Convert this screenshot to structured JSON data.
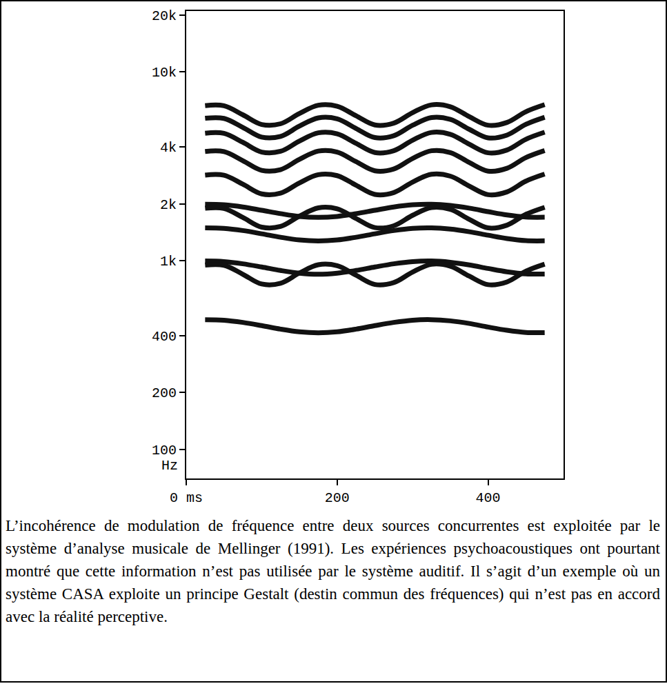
{
  "chart_data": {
    "type": "line",
    "ylabel": "Hz",
    "log": "y",
    "grid": false,
    "xlim": [
      0,
      500
    ],
    "ylim": [
      70,
      21000
    ],
    "xticks": [
      {
        "value": 0,
        "label": "0 ms"
      },
      200,
      400
    ],
    "yticks": [
      100,
      200,
      400,
      {
        "value": 1000,
        "label": "1k"
      },
      {
        "value": 2000,
        "label": "2k"
      },
      {
        "value": 4000,
        "label": "4k"
      },
      {
        "value": 10000,
        "label": "10k"
      },
      {
        "value": 20000,
        "label": "20k"
      }
    ],
    "x": [
      25,
      50,
      75,
      100,
      125,
      150,
      175,
      200,
      225,
      250,
      275,
      300,
      325,
      350,
      375,
      400,
      425,
      450,
      475
    ],
    "series": [
      {
        "color": "#111111",
        "values": [
          486,
          483,
          470,
          452,
          433,
          419,
          414,
          419,
          433,
          452,
          470,
          483,
          486,
          479,
          464,
          444,
          427,
          416,
          415
        ]
      },
      {
        "color": "#111111",
        "values": [
          994,
          987,
          961,
          924,
          886,
          857,
          846,
          857,
          886,
          924,
          961,
          987,
          994,
          979,
          948,
          908,
          872,
          850,
          848
        ]
      },
      {
        "color": "#111111",
        "values": [
          1490,
          1481,
          1442,
          1386,
          1329,
          1285,
          1270,
          1285,
          1329,
          1386,
          1442,
          1481,
          1490,
          1468,
          1421,
          1362,
          1308,
          1275,
          1272
        ]
      },
      {
        "color": "#111111",
        "values": [
          1987,
          1974,
          1923,
          1847,
          1772,
          1713,
          1693,
          1713,
          1772,
          1847,
          1923,
          1974,
          1987,
          1958,
          1895,
          1816,
          1744,
          1700,
          1696
        ]
      },
      {
        "color": "#111111",
        "values": [
          946,
          944,
          846,
          751,
          758,
          859,
          950,
          939,
          836,
          747,
          764,
          869,
          955,
          933,
          827,
          745,
          770,
          878,
          957
        ]
      },
      {
        "color": "#111111",
        "values": [
          1892,
          1889,
          1692,
          1503,
          1516,
          1719,
          1901,
          1879,
          1671,
          1494,
          1528,
          1737,
          1909,
          1867,
          1654,
          1489,
          1540,
          1756,
          1914
        ]
      },
      {
        "color": "#111111",
        "values": [
          2838,
          2833,
          2537,
          2254,
          2275,
          2578,
          2851,
          2818,
          2507,
          2241,
          2292,
          2606,
          2864,
          2800,
          2481,
          2234,
          2310,
          2634,
          2871
        ]
      },
      {
        "color": "#111111",
        "values": [
          3784,
          3777,
          3383,
          3006,
          3033,
          3437,
          3801,
          3757,
          3342,
          2989,
          3057,
          3475,
          3818,
          3733,
          3308,
          2978,
          3080,
          3512,
          3828
        ]
      },
      {
        "color": "#111111",
        "values": [
          4730,
          4722,
          4229,
          3757,
          3791,
          4297,
          4752,
          4696,
          4178,
          3736,
          3821,
          4344,
          4773,
          4667,
          4135,
          3723,
          3851,
          4390,
          4786
        ]
      },
      {
        "color": "#111111",
        "values": [
          5676,
          5666,
          5075,
          4508,
          4549,
          5156,
          5702,
          5636,
          5013,
          4483,
          4585,
          5212,
          5727,
          5600,
          4962,
          4468,
          4621,
          5268,
          5743
        ]
      },
      {
        "color": "#111111",
        "values": [
          6622,
          6610,
          5920,
          5260,
          5307,
          6015,
          6652,
          6575,
          5849,
          5230,
          5349,
          6081,
          6682,
          6533,
          5789,
          5212,
          5391,
          6146,
          6700
        ]
      }
    ]
  },
  "caption": "L’incohérence de modulation de fréquence entre deux sources concurrentes est exploitée par le système d’analyse musicale de Mellinger (1991). Les expériences psychoacoustiques ont pourtant montré que cette information n’est pas utilisée par le système auditif. Il s’agit d’un exemple où un système CASA exploite un principe Gestalt (destin commun des fréquences) qui n’est pas en accord avec la réalité perceptive."
}
